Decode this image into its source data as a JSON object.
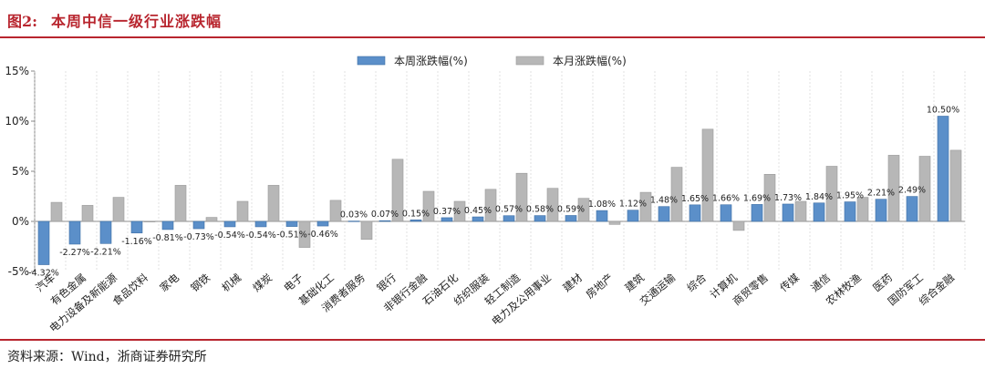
{
  "header": {
    "figure_label": "图2:",
    "title": "本周中信一级行业涨跌幅"
  },
  "footer": {
    "source": "资料来源：Wind，浙商证券研究所"
  },
  "colors": {
    "brand": "#b8252e",
    "weekly": "#5b8fc9",
    "monthly": "#b7b7b7"
  },
  "chart_data": {
    "type": "bar",
    "title": "",
    "xlabel": "",
    "ylabel": "",
    "ylim": [
      -5,
      15
    ],
    "yticks": [
      "-5%",
      "0%",
      "5%",
      "10%",
      "15%"
    ],
    "ytick_values": [
      -5,
      0,
      5,
      10,
      15
    ],
    "legend_position": "top-center",
    "grid": false,
    "categories": [
      "汽车",
      "有色金属",
      "电力设备及新能源",
      "食品饮料",
      "家电",
      "钢铁",
      "机械",
      "煤炭",
      "电子",
      "基础化工",
      "消费者服务",
      "银行",
      "非银行金融",
      "石油石化",
      "纺织服装",
      "轻工制造",
      "电力及公用事业",
      "建材",
      "房地产",
      "建筑",
      "交通运输",
      "综合",
      "计算机",
      "商贸零售",
      "传媒",
      "通信",
      "农林牧渔",
      "医药",
      "国防军工",
      "综合金融"
    ],
    "series": [
      {
        "name": "本周涨跌幅(%)",
        "values": [
          -4.32,
          -2.27,
          -2.21,
          -1.16,
          -0.81,
          -0.73,
          -0.54,
          -0.54,
          -0.51,
          -0.46,
          0.03,
          0.07,
          0.15,
          0.37,
          0.45,
          0.57,
          0.58,
          0.59,
          1.08,
          1.12,
          1.48,
          1.65,
          1.66,
          1.69,
          1.73,
          1.84,
          1.95,
          2.21,
          2.49,
          10.5
        ],
        "labels": [
          "-4.32%",
          "-2.27%",
          "-2.21%",
          "-1.16%",
          "-0.81%",
          "-0.73%",
          "-0.54%",
          "-0.54%",
          "-0.51%",
          "-0.46%",
          "0.03%",
          "0.07%",
          "0.15%",
          "0.37%",
          "0.45%",
          "0.57%",
          "0.58%",
          "0.59%",
          "1.08%",
          "1.12%",
          "1.48%",
          "1.65%",
          "1.66%",
          "1.69%",
          "1.73%",
          "1.84%",
          "1.95%",
          "2.21%",
          "2.49%",
          "10.50%"
        ]
      },
      {
        "name": "本月涨跌幅(%)",
        "values": [
          1.9,
          1.6,
          2.4,
          0.0,
          3.6,
          0.4,
          2.0,
          3.6,
          -2.6,
          2.1,
          -1.8,
          6.2,
          3.0,
          2.0,
          3.2,
          4.8,
          3.3,
          2.3,
          -0.3,
          2.9,
          5.4,
          9.2,
          -0.9,
          4.7,
          2.0,
          5.5,
          2.4,
          6.6,
          6.5,
          7.1
        ]
      }
    ]
  }
}
